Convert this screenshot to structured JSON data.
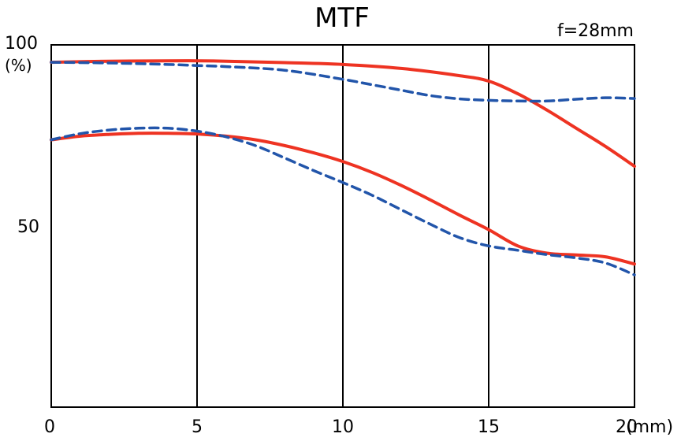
{
  "chart_data": {
    "type": "line",
    "title": "MTF",
    "subtitle": "f=28mm",
    "x_unit_label": "(mm)",
    "y_unit_label": "(%)",
    "xlim": [
      0,
      20
    ],
    "ylim": [
      0,
      100
    ],
    "x_ticks": [
      {
        "value": 0,
        "label": "0"
      },
      {
        "value": 5,
        "label": "5"
      },
      {
        "value": 10,
        "label": "10"
      },
      {
        "value": 15,
        "label": "15"
      },
      {
        "value": 20,
        "label": "20"
      }
    ],
    "y_ticks": [
      {
        "value": 50,
        "label": "50"
      },
      {
        "value": 100,
        "label": "100"
      }
    ],
    "vertical_gridlines": [
      5,
      10,
      15
    ],
    "series": [
      {
        "id": "solid-high",
        "color": "#ee3322",
        "style": "solid",
        "x": [
          0,
          2,
          4,
          5,
          6,
          8,
          10,
          12,
          14,
          15,
          16,
          17,
          18,
          19,
          20
        ],
        "y": [
          95.2,
          95.5,
          95.6,
          95.6,
          95.5,
          95.1,
          94.6,
          93.5,
          91.5,
          90,
          86.5,
          82,
          77,
          72,
          66.5
        ]
      },
      {
        "id": "dashed-high",
        "color": "#2255aa",
        "style": "dashed",
        "x": [
          0,
          2,
          4,
          5,
          6,
          8,
          10,
          11,
          12,
          13,
          14,
          15,
          16,
          17,
          18,
          19,
          20
        ],
        "y": [
          95.2,
          95,
          94.6,
          94.3,
          94,
          93,
          90.5,
          89,
          87.5,
          86,
          85.1,
          84.7,
          84.5,
          84.5,
          85,
          85.4,
          85.2
        ]
      },
      {
        "id": "solid-low",
        "color": "#ee3322",
        "style": "solid",
        "x": [
          0,
          1,
          2,
          3,
          4,
          5,
          6,
          7,
          8,
          9,
          10,
          11,
          12,
          13,
          14,
          15,
          16,
          17,
          18,
          19,
          20
        ],
        "y": [
          73.8,
          74.8,
          75.3,
          75.6,
          75.6,
          75.4,
          74.8,
          73.8,
          72.2,
          70.2,
          67.8,
          64.8,
          61.2,
          57.2,
          53,
          49,
          44.5,
          42.5,
          42,
          41.5,
          39.5
        ]
      },
      {
        "id": "dashed-low",
        "color": "#2255aa",
        "style": "dashed",
        "x": [
          0,
          1,
          2,
          3,
          4,
          5,
          6,
          7,
          8,
          9,
          10,
          11,
          12,
          13,
          14,
          15,
          16,
          17,
          18,
          19,
          20
        ],
        "y": [
          73.8,
          75.5,
          76.5,
          77,
          77,
          76.2,
          74.6,
          72.2,
          68.8,
          65.3,
          62,
          58.5,
          54.5,
          50.5,
          46.8,
          44.5,
          43.3,
          42.1,
          41.2,
          39.8,
          36.5
        ]
      }
    ]
  }
}
